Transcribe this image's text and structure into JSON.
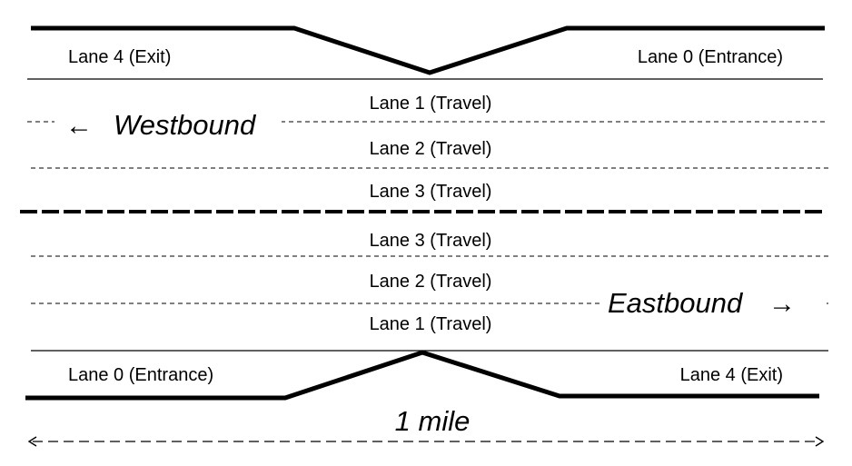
{
  "westbound": {
    "direction_label": "Westbound",
    "direction_arrow": "←",
    "lanes": {
      "exit": "Lane 4 (Exit)",
      "entrance": "Lane 0 (Entrance)",
      "travel_1": "Lane 1 (Travel)",
      "travel_2": "Lane 2 (Travel)",
      "travel_3": "Lane 3 (Travel)"
    }
  },
  "eastbound": {
    "direction_label": "Eastbound",
    "direction_arrow": "→",
    "lanes": {
      "travel_3": "Lane 3 (Travel)",
      "travel_2": "Lane 2 (Travel)",
      "travel_1": "Lane 1 (Travel)",
      "entrance": "Lane 0 (Entrance)",
      "exit": "Lane 4 (Exit)"
    }
  },
  "distance": {
    "label": "1 mile"
  }
}
